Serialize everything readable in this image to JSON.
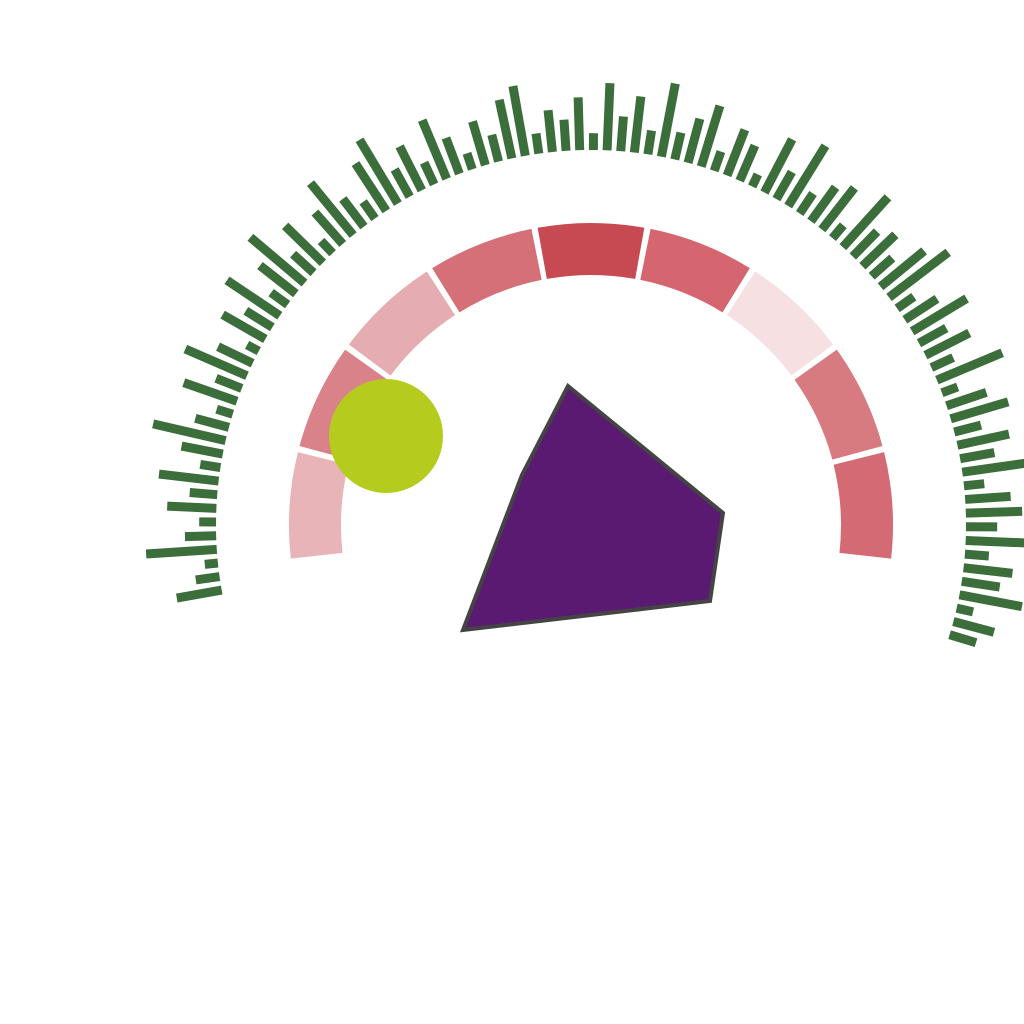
{
  "colors": {
    "background": "#ffffff",
    "outer_ticks": "#3b6e3a",
    "polygon_fill": "#5b1a72",
    "polygon_stroke": "#444444",
    "ball": "#b5cc1e"
  },
  "ring_segments": [
    {
      "color": "#e8b4b8"
    },
    {
      "color": "#d9828a"
    },
    {
      "color": "#e5adb1"
    },
    {
      "color": "#d56f78"
    },
    {
      "color": "#c74a53"
    },
    {
      "color": "#d5656f"
    },
    {
      "color": "#f6e0e2"
    },
    {
      "color": "#d87b81"
    },
    {
      "color": "#d46a74"
    }
  ],
  "outer_tick_lengths": [
    0.55,
    0.25,
    0.1,
    0.9,
    0.35,
    0.15,
    0.6,
    0.3,
    0.75,
    0.2,
    0.5,
    0.95,
    0.4,
    0.15,
    0.7,
    0.3,
    0.85,
    0.45,
    0.1,
    0.6,
    0.35,
    0.8,
    0.2,
    0.55,
    0.9,
    0.3,
    0.65,
    0.15,
    0.5,
    0.85,
    0.4,
    0.2,
    0.7,
    0.95,
    0.35,
    0.6,
    0.25,
    0.8,
    0.45,
    0.15,
    0.55,
    0.3,
    0.75,
    0.9,
    0.2,
    0.5,
    0.35,
    0.65,
    0.15,
    0.85,
    0.4,
    0.7,
    0.25,
    0.95,
    0.3,
    0.55,
    0.8,
    0.2,
    0.6,
    0.45,
    0.1,
    0.75,
    0.35,
    0.9,
    0.25,
    0.5,
    0.65,
    0.15,
    0.85,
    0.4,
    0.55,
    0.3,
    0.7,
    0.95,
    0.2,
    0.45,
    0.8,
    0.35,
    0.6,
    0.25,
    0.9,
    0.15,
    0.5,
    0.75,
    0.3,
    0.65,
    0.4,
    0.85,
    0.2,
    0.55,
    0.7,
    0.35,
    0.95,
    0.25,
    0.6,
    0.45,
    0.8,
    0.15,
    0.5,
    0.3
  ]
}
